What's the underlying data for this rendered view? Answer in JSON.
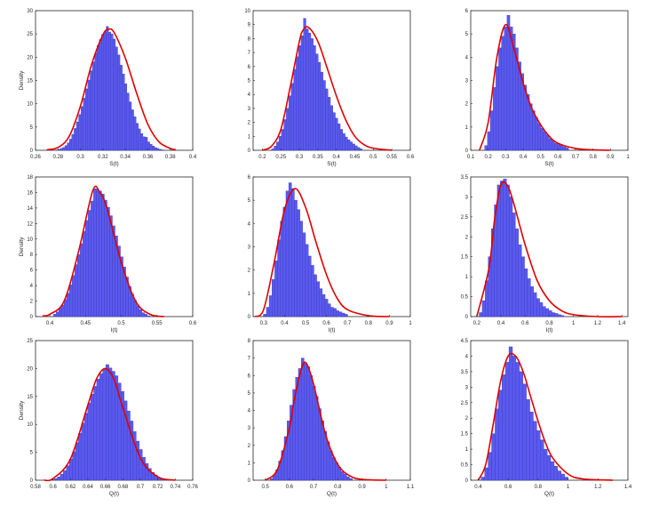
{
  "colors": {
    "bar_fill": "#5a5af0",
    "bar_edge": "#3a3ab8",
    "curve": "#e00000",
    "axis": "#262626"
  },
  "chart_data": [
    {
      "type": "bar",
      "xlabel": "S(t)",
      "ylabel": "Density",
      "xlim": [
        0.26,
        0.4
      ],
      "ylim": [
        0,
        30
      ],
      "xticks": [
        0.26,
        0.28,
        0.3,
        0.32,
        0.34,
        0.36,
        0.38,
        0.4
      ],
      "xtick_labels": [
        "0.26",
        "0.28",
        "0.3",
        "0.32",
        "0.34",
        "0.36",
        "0.38",
        "0.4"
      ],
      "yticks": [
        0,
        5,
        10,
        15,
        20,
        25,
        30
      ],
      "ytick_labels": [
        "0",
        "5",
        "10",
        "15",
        "20",
        "25",
        "30"
      ],
      "hist_range": [
        0.278,
        0.374
      ],
      "peak": 26.6,
      "bin_heights": [
        0.1,
        0.2,
        0.4,
        0.6,
        1.0,
        1.6,
        2.4,
        3.4,
        4.7,
        6.1,
        7.7,
        9.4,
        11.2,
        13.2,
        15.1,
        17.1,
        19.0,
        20.9,
        22.5,
        23.8,
        24.9,
        25.5,
        26.6,
        25.4,
        25.0,
        23.9,
        22.2,
        20.5,
        18.3,
        16.4,
        14.3,
        12.3,
        10.4,
        8.7,
        7.2,
        5.8,
        4.6,
        3.6,
        2.9,
        2.8,
        1.8,
        1.3,
        0.9,
        0.6,
        0.4,
        0.2,
        0.1
      ],
      "curve_x": [
        0.27,
        0.28,
        0.29,
        0.3,
        0.31,
        0.32,
        0.325,
        0.33,
        0.34,
        0.35,
        0.36,
        0.37,
        0.38,
        0.385
      ],
      "curve_y": [
        0.1,
        0.6,
        3.0,
        9.5,
        18.5,
        24.8,
        26.0,
        25.3,
        19.8,
        12.3,
        5.6,
        1.8,
        0.4,
        0.1
      ]
    },
    {
      "type": "bar",
      "xlabel": "S(t)",
      "ylabel": "",
      "xlim": [
        0.175,
        0.6
      ],
      "ylim": [
        0,
        10
      ],
      "xticks": [
        0.2,
        0.25,
        0.3,
        0.35,
        0.4,
        0.45,
        0.5,
        0.55,
        0.6
      ],
      "xtick_labels": [
        "0.2",
        "0.25",
        "0.3",
        "0.35",
        "0.4",
        "0.45",
        "0.5",
        "0.55",
        "0.6"
      ],
      "yticks": [
        0,
        1,
        2,
        3,
        4,
        5,
        6,
        7,
        8,
        9,
        10
      ],
      "ytick_labels": [
        "0",
        "1",
        "2",
        "3",
        "4",
        "5",
        "6",
        "7",
        "8",
        "9",
        "10"
      ],
      "hist_range": [
        0.225,
        0.47
      ],
      "peak": 9.45,
      "bin_heights": [
        0.1,
        0.3,
        0.6,
        1.0,
        1.5,
        2.2,
        3.0,
        3.9,
        4.8,
        5.8,
        6.7,
        7.5,
        8.2,
        9.45,
        8.7,
        8.4,
        8.0,
        7.5,
        6.9,
        6.3,
        5.6,
        5.0,
        4.4,
        3.8,
        3.2,
        2.7,
        2.3,
        1.9,
        1.5,
        1.2,
        0.95,
        0.75,
        0.6,
        0.45,
        0.32,
        0.2,
        0.1
      ],
      "curve_x": [
        0.2,
        0.225,
        0.25,
        0.275,
        0.3,
        0.31,
        0.325,
        0.35,
        0.375,
        0.4,
        0.425,
        0.45,
        0.475,
        0.5,
        0.55
      ],
      "curve_y": [
        0.0,
        0.3,
        1.5,
        4.5,
        7.8,
        8.6,
        8.8,
        7.8,
        5.9,
        3.9,
        2.2,
        1.0,
        0.4,
        0.15,
        0.0
      ]
    },
    {
      "type": "bar",
      "xlabel": "S(t)",
      "ylabel": "",
      "xlim": [
        0.1,
        1.0
      ],
      "ylim": [
        0,
        6
      ],
      "xticks": [
        0.1,
        0.2,
        0.3,
        0.4,
        0.5,
        0.6,
        0.7,
        0.8,
        0.9,
        1.0
      ],
      "xtick_labels": [
        "0.1",
        "0.2",
        "0.3",
        "0.4",
        "0.5",
        "0.6",
        "0.7",
        "0.8",
        "0.9",
        "1"
      ],
      "yticks": [
        0,
        1,
        2,
        3,
        4,
        5,
        6
      ],
      "ytick_labels": [
        "0",
        "1",
        "2",
        "3",
        "4",
        "5",
        "6"
      ],
      "hist_range": [
        0.18,
        0.66
      ],
      "peak": 5.8,
      "bin_heights": [
        0.2,
        0.8,
        1.7,
        2.7,
        3.6,
        4.4,
        4.9,
        5.3,
        5.8,
        5.3,
        5.0,
        4.4,
        3.8,
        3.3,
        2.8,
        2.4,
        2.0,
        1.7,
        1.4,
        1.15,
        0.95,
        0.8,
        0.65,
        0.5,
        0.4,
        0.3,
        0.25,
        0.2,
        0.15,
        0.1
      ],
      "curve_x": [
        0.15,
        0.2,
        0.25,
        0.3,
        0.35,
        0.4,
        0.45,
        0.5,
        0.55,
        0.6,
        0.7,
        0.8,
        0.9
      ],
      "curve_y": [
        0.0,
        1.2,
        4.0,
        5.4,
        4.3,
        2.9,
        1.8,
        1.1,
        0.6,
        0.3,
        0.08,
        0.02,
        0.0
      ]
    },
    {
      "type": "bar",
      "xlabel": "I(t)",
      "ylabel": "Density",
      "xlim": [
        0.38,
        0.6
      ],
      "ylim": [
        0,
        18
      ],
      "xticks": [
        0.4,
        0.45,
        0.5,
        0.55,
        0.6
      ],
      "xtick_labels": [
        "0.4",
        "0.45",
        "0.5",
        "0.55",
        "0.6"
      ],
      "yticks": [
        0,
        2,
        4,
        6,
        8,
        10,
        12,
        14,
        16,
        18
      ],
      "ytick_labels": [
        "0",
        "2",
        "4",
        "6",
        "8",
        "10",
        "12",
        "14",
        "16",
        "18"
      ],
      "hist_range": [
        0.405,
        0.54
      ],
      "peak": 16.5,
      "bin_heights": [
        0.3,
        0.6,
        1.1,
        1.5,
        2.2,
        3.0,
        4.1,
        5.3,
        6.7,
        8.0,
        9.4,
        11.0,
        12.4,
        13.7,
        14.9,
        16.5,
        16.4,
        16.2,
        15.8,
        15.0,
        14.1,
        13.0,
        11.7,
        10.4,
        9.1,
        7.7,
        6.4,
        5.1,
        3.9,
        2.9,
        2.1,
        1.4,
        0.9,
        0.5,
        0.3,
        0.1
      ],
      "curve_x": [
        0.39,
        0.4,
        0.42,
        0.44,
        0.46,
        0.47,
        0.48,
        0.5,
        0.52,
        0.54,
        0.56
      ],
      "curve_y": [
        0.1,
        0.3,
        2.0,
        8.3,
        16.2,
        16.0,
        14.0,
        7.0,
        2.0,
        0.3,
        0.0
      ]
    },
    {
      "type": "bar",
      "xlabel": "I(t)",
      "ylabel": "",
      "xlim": [
        0.25,
        1.0
      ],
      "ylim": [
        0,
        6
      ],
      "xticks": [
        0.3,
        0.4,
        0.5,
        0.6,
        0.7,
        0.8,
        0.9,
        1.0
      ],
      "xtick_labels": [
        "0.3",
        "0.4",
        "0.5",
        "0.6",
        "0.7",
        "0.8",
        "0.9",
        "1"
      ],
      "yticks": [
        0,
        1,
        2,
        3,
        4,
        5,
        6
      ],
      "ytick_labels": [
        "0",
        "1",
        "2",
        "3",
        "4",
        "5",
        "6"
      ],
      "hist_range": [
        0.3,
        0.7
      ],
      "peak": 5.75,
      "bin_heights": [
        0.1,
        0.4,
        0.9,
        1.6,
        2.4,
        3.3,
        4.1,
        4.7,
        5.4,
        5.75,
        5.5,
        5.0,
        4.6,
        4.1,
        3.6,
        3.1,
        2.6,
        2.2,
        1.8,
        1.5,
        1.2,
        0.95,
        0.75,
        0.55,
        0.4,
        0.35,
        0.25,
        0.2,
        0.15,
        0.1
      ],
      "curve_x": [
        0.26,
        0.3,
        0.35,
        0.4,
        0.45,
        0.5,
        0.55,
        0.6,
        0.65,
        0.7,
        0.8,
        0.9
      ],
      "curve_y": [
        0.0,
        0.3,
        2.3,
        4.6,
        5.5,
        4.7,
        3.2,
        1.8,
        0.8,
        0.3,
        0.04,
        0.0
      ]
    },
    {
      "type": "bar",
      "xlabel": "I(t)",
      "ylabel": "",
      "xlim": [
        0.15,
        1.45
      ],
      "ylim": [
        0,
        3.5
      ],
      "xticks": [
        0.2,
        0.4,
        0.6,
        0.8,
        1.0,
        1.2,
        1.4
      ],
      "xtick_labels": [
        "0.2",
        "0.4",
        "0.6",
        "0.8",
        "1",
        "1.2",
        "1.4"
      ],
      "yticks": [
        0,
        0.5,
        1,
        1.5,
        2,
        2.5,
        3,
        3.5
      ],
      "ytick_labels": [
        "0",
        "0.5",
        "1",
        "1.5",
        "2",
        "2.5",
        "3",
        "3.5"
      ],
      "hist_range": [
        0.22,
        0.92
      ],
      "peak": 3.45,
      "bin_heights": [
        0.1,
        0.4,
        0.9,
        1.5,
        2.2,
        2.8,
        3.3,
        3.4,
        3.45,
        3.3,
        3.0,
        2.6,
        2.2,
        1.8,
        1.5,
        1.2,
        0.95,
        0.75,
        0.6,
        0.45,
        0.35,
        0.25,
        0.2,
        0.15,
        0.1,
        0.08,
        0.05,
        0.03
      ],
      "curve_x": [
        0.2,
        0.3,
        0.35,
        0.4,
        0.45,
        0.5,
        0.6,
        0.7,
        0.8,
        0.9,
        1.0,
        1.2,
        1.4
      ],
      "curve_y": [
        0.0,
        1.2,
        2.5,
        3.3,
        3.3,
        2.9,
        1.8,
        0.9,
        0.4,
        0.15,
        0.05,
        0.0,
        0.0
      ]
    },
    {
      "type": "bar",
      "xlabel": "Q(t)",
      "ylabel": "Density",
      "xlim": [
        0.58,
        0.76
      ],
      "ylim": [
        0,
        25
      ],
      "xticks": [
        0.58,
        0.6,
        0.62,
        0.64,
        0.66,
        0.68,
        0.7,
        0.72,
        0.74,
        0.76
      ],
      "xtick_labels": [
        "0.58",
        "0.6",
        "0.62",
        "0.64",
        "0.66",
        "0.68",
        "0.7",
        "0.72",
        "0.74",
        "0.76"
      ],
      "yticks": [
        0,
        5,
        10,
        15,
        20,
        25
      ],
      "ytick_labels": [
        "0",
        "5",
        "10",
        "15",
        "20",
        "25"
      ],
      "hist_range": [
        0.598,
        0.73
      ],
      "peak": 20.7,
      "bin_heights": [
        0.1,
        0.3,
        0.6,
        1.1,
        1.7,
        2.6,
        3.8,
        5.1,
        6.7,
        8.4,
        10.2,
        12.0,
        13.8,
        15.4,
        16.8,
        18.1,
        19.1,
        19.9,
        20.7,
        20.1,
        19.5,
        18.7,
        17.4,
        15.9,
        14.2,
        12.4,
        10.6,
        8.7,
        7.0,
        5.5,
        4.1,
        3.0,
        2.1,
        1.4,
        0.9,
        0.5,
        0.3,
        0.1
      ],
      "curve_x": [
        0.59,
        0.6,
        0.62,
        0.64,
        0.65,
        0.66,
        0.67,
        0.68,
        0.7,
        0.72,
        0.74
      ],
      "curve_y": [
        0.0,
        0.3,
        3.8,
        13.5,
        18.2,
        20.0,
        18.0,
        13.0,
        4.0,
        0.6,
        0.0
      ]
    },
    {
      "type": "bar",
      "xlabel": "Q(t)",
      "ylabel": "",
      "xlim": [
        0.45,
        1.1
      ],
      "ylim": [
        0,
        8
      ],
      "xticks": [
        0.5,
        0.6,
        0.7,
        0.8,
        0.9,
        1.0,
        1.1
      ],
      "xtick_labels": [
        "0.5",
        "0.6",
        "0.7",
        "0.8",
        "0.9",
        "1",
        "1.1"
      ],
      "yticks": [
        0,
        1,
        2,
        3,
        4,
        5,
        6,
        7,
        8
      ],
      "ytick_labels": [
        "0",
        "1",
        "2",
        "3",
        "4",
        "5",
        "6",
        "7",
        "8"
      ],
      "hist_range": [
        0.52,
        0.86
      ],
      "peak": 7.0,
      "bin_heights": [
        0.1,
        0.3,
        0.6,
        1.1,
        1.7,
        2.5,
        3.4,
        4.3,
        5.2,
        5.9,
        6.4,
        7.0,
        6.7,
        6.5,
        6.0,
        5.4,
        4.8,
        4.1,
        3.4,
        2.8,
        2.2,
        1.7,
        1.3,
        1.0,
        0.75,
        0.5,
        0.35,
        0.2,
        0.1
      ],
      "curve_x": [
        0.5,
        0.55,
        0.6,
        0.62,
        0.65,
        0.67,
        0.7,
        0.75,
        0.8,
        0.85,
        0.9,
        1.0
      ],
      "curve_y": [
        0.0,
        0.6,
        3.0,
        4.6,
        6.4,
        6.7,
        5.5,
        2.6,
        0.9,
        0.25,
        0.05,
        0.0
      ]
    },
    {
      "type": "bar",
      "xlabel": "Q(t)",
      "ylabel": "",
      "xlim": [
        0.35,
        1.4
      ],
      "ylim": [
        0,
        4.5
      ],
      "xticks": [
        0.4,
        0.6,
        0.8,
        1.0,
        1.2,
        1.4
      ],
      "xtick_labels": [
        "0.4",
        "0.6",
        "0.8",
        "1",
        "1.2",
        "1.4"
      ],
      "yticks": [
        0,
        0.5,
        1,
        1.5,
        2,
        2.5,
        3,
        3.5,
        4,
        4.5
      ],
      "ytick_labels": [
        "0",
        "0.5",
        "1",
        "1.5",
        "2",
        "2.5",
        "3",
        "3.5",
        "4",
        "4.5"
      ],
      "hist_range": [
        0.42,
        1.0
      ],
      "peak": 4.3,
      "bin_heights": [
        0.1,
        0.4,
        0.9,
        1.5,
        2.3,
        2.9,
        3.4,
        3.8,
        4.3,
        4.0,
        3.8,
        3.5,
        3.1,
        2.6,
        2.2,
        1.9,
        1.6,
        1.3,
        1.0,
        0.8,
        0.6,
        0.45,
        0.3,
        0.2,
        0.1
      ],
      "curve_x": [
        0.4,
        0.45,
        0.5,
        0.55,
        0.6,
        0.65,
        0.7,
        0.75,
        0.8,
        0.85,
        0.9,
        1.0,
        1.1,
        1.3
      ],
      "curve_y": [
        0.0,
        0.5,
        1.8,
        3.2,
        4.0,
        4.0,
        3.5,
        2.7,
        1.9,
        1.2,
        0.7,
        0.2,
        0.04,
        0.0
      ]
    }
  ]
}
